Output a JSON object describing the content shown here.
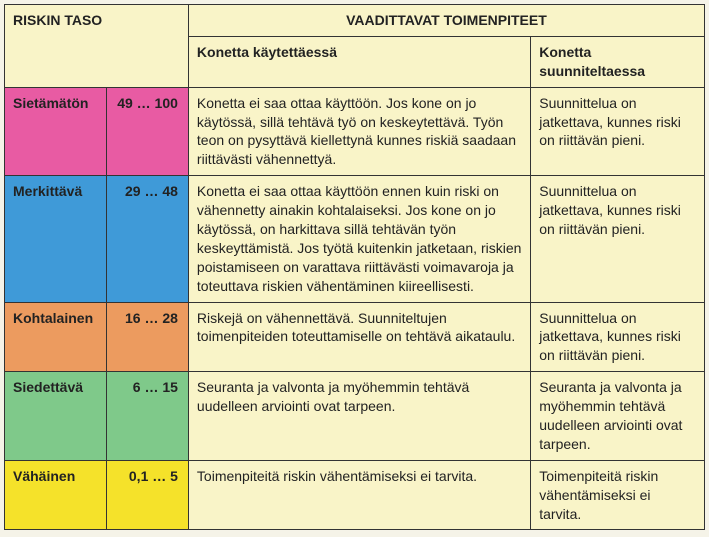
{
  "header": {
    "risk_level": "RISKIN TASO",
    "required_actions": "VAADITTAVAT TOIMENPITEET",
    "when_using": "Konetta käytettäessä",
    "when_designing": "Konetta suunniteltaessa"
  },
  "colors": {
    "header_bg": "#f9f4c8",
    "border": "#333333",
    "rows": {
      "intolerable": "#e85ba3",
      "significant": "#3f9ad8",
      "moderate": "#ec9b5f",
      "tolerable": "#7fc98a",
      "minor": "#f5e22a"
    }
  },
  "rows": [
    {
      "key": "intolerable",
      "level": "Sietämätön",
      "range": "49 … 100",
      "using": "Konetta ei saa ottaa käyttöön. Jos kone on jo käytössä, sillä tehtävä työ on keskeytettävä. Työn teon on pysyttävä kiellettynä kunnes riskiä saadaan riittävästi vähennettyä.",
      "design": "Suunnittelua on jatkettava, kunnes riski on riittävän pieni."
    },
    {
      "key": "significant",
      "level": "Merkittävä",
      "range": "29 … 48",
      "using": "Konetta ei saa ottaa käyttöön ennen kuin riski on vähennetty ainakin kohtalaiseksi. Jos kone on jo käytössä, on harkittava sillä tehtävän työn keskeyttämistä. Jos työtä kuitenkin jatketaan, riskien poistamiseen on varattava riittävästi voimavaroja ja toteuttava riskien vähentäminen kiireellisesti.",
      "design": "Suunnittelua on jatkettava, kunnes riski on riittävän pieni."
    },
    {
      "key": "moderate",
      "level": "Kohtalainen",
      "range": "16 … 28",
      "using": "Riskejä on vähennettävä. Suunniteltujen toimenpiteiden toteuttamiselle on tehtävä aikataulu.",
      "design": "Suunnittelua on jatkettava, kunnes riski on riittävän pieni."
    },
    {
      "key": "tolerable",
      "level": "Siedettävä",
      "range": "6 … 15",
      "using": "Seuranta ja valvonta ja myöhemmin tehtävä uudelleen arviointi ovat tarpeen.",
      "design": "Seuranta ja valvonta ja myöhemmin tehtävä uudelleen arviointi ovat tarpeen."
    },
    {
      "key": "minor",
      "level": "Vähäinen",
      "range": "0,1 … 5",
      "using": "Toimenpiteitä riskin vähentämiseksi ei tarvita.",
      "design": "Toimenpiteitä riskin vähentämiseksi ei tarvita."
    }
  ]
}
